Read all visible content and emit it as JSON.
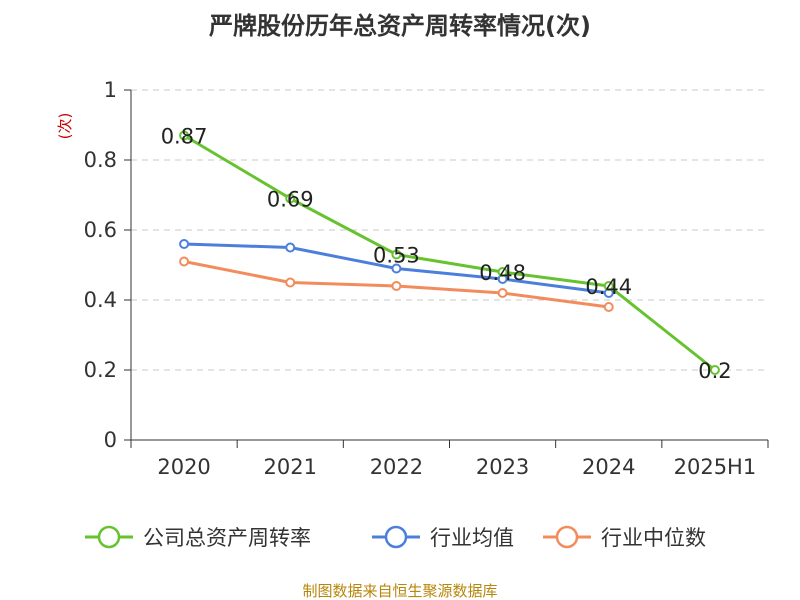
{
  "chart_data": {
    "type": "line",
    "title": "严牌股份历年总资产周转率情况(次)",
    "ylabel": "(次)",
    "xlabel": "",
    "categories": [
      "2020",
      "2021",
      "2022",
      "2023",
      "2024",
      "2025H1"
    ],
    "ylim": [
      0,
      1
    ],
    "yticks": [
      "0",
      "0.2",
      "0.4",
      "0.6",
      "0.8",
      "1"
    ],
    "grid": true,
    "legend_position": "bottom",
    "series": [
      {
        "name": "公司总资产周转率",
        "color": "#66c22e",
        "values": [
          0.87,
          0.69,
          0.53,
          0.48,
          0.44,
          0.2
        ],
        "labels": [
          "0.87",
          "0.69",
          "0.53",
          "0.48",
          "0.44",
          "0.2"
        ]
      },
      {
        "name": "行业均值",
        "color": "#4c7fdc",
        "values": [
          0.56,
          0.55,
          0.49,
          0.46,
          0.42,
          null
        ]
      },
      {
        "name": "行业中位数",
        "color": "#f28c5c",
        "values": [
          0.51,
          0.45,
          0.44,
          0.42,
          0.38,
          null
        ]
      }
    ]
  },
  "source": "制图数据来自恒生聚源数据库"
}
